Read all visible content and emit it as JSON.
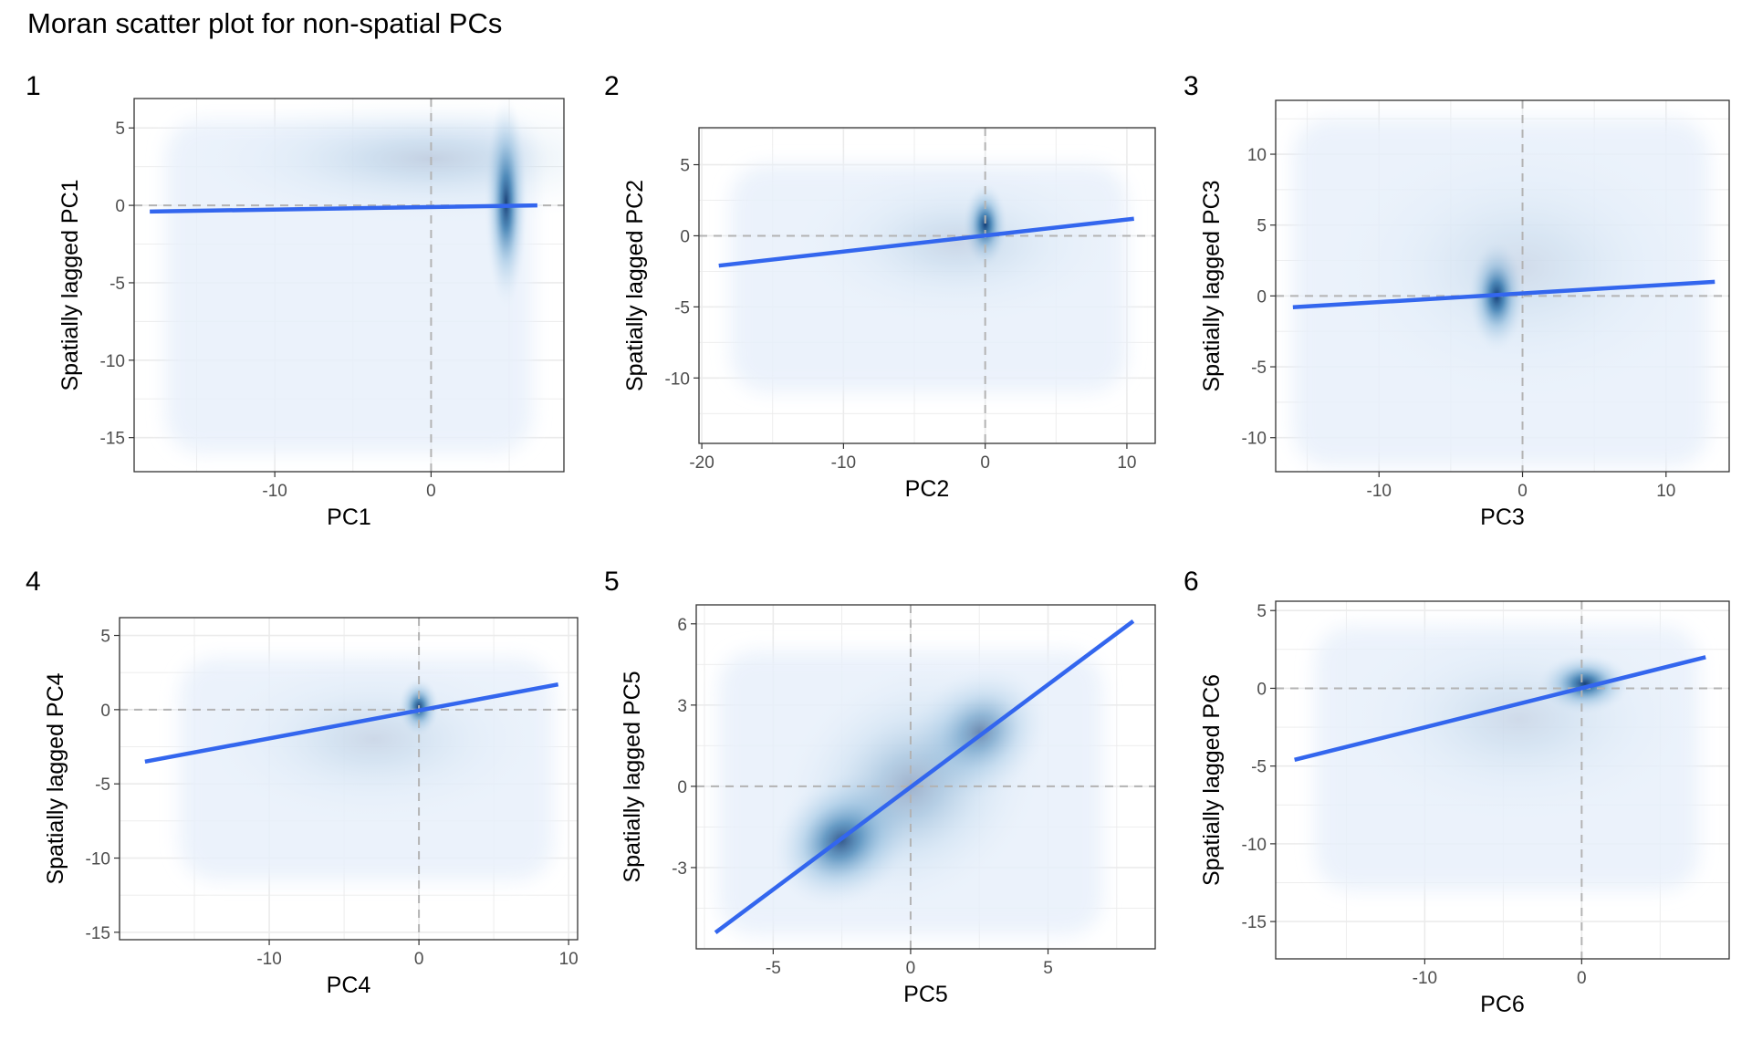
{
  "title": "Moran scatter plot for non-spatial PCs",
  "colors": {
    "fit_line": "#3366ee",
    "density_low": "#e8f0fb",
    "density_mid": "#7fb2d8",
    "density_high": "#08306b",
    "ref_line": "#b3b3b3",
    "grid": "#ebebeb",
    "panel_border": "#333333"
  },
  "chart_data": [
    {
      "type": "scatter",
      "tag": "1",
      "xlabel": "PC1",
      "ylabel": "Spatially lagged PC1",
      "xlim": [
        -19,
        8.5
      ],
      "ylim": [
        -17.2,
        6.9
      ],
      "xticks": [
        -10,
        0
      ],
      "xtick_labels": [
        "-10",
        "0"
      ],
      "yticks": [
        -15,
        -10,
        -5,
        0,
        5
      ],
      "ytick_labels": [
        "-15",
        "-10",
        "-5",
        "0",
        "5"
      ],
      "density_extent": {
        "x": [
          -17,
          6.5
        ],
        "y": [
          -16,
          5.5
        ]
      },
      "density_clusters": [
        {
          "x": 4.8,
          "y": 0.2,
          "sx": 0.7,
          "sy": 3.5,
          "w": 1.0
        },
        {
          "x": 0.0,
          "y": 3.0,
          "sx": 8.0,
          "sy": 2.2,
          "w": 0.18
        }
      ],
      "fit_line": {
        "x": [
          -18,
          6.8
        ],
        "y": [
          -0.4,
          0.0
        ]
      },
      "grid": true
    },
    {
      "type": "scatter",
      "tag": "2",
      "xlabel": "PC2",
      "ylabel": "Spatially lagged PC2",
      "xlim": [
        -20.2,
        12
      ],
      "ylim": [
        -14.6,
        7.6
      ],
      "xticks": [
        -20,
        -10,
        0,
        10
      ],
      "xtick_labels": [
        "-20",
        "-10",
        "0",
        "10"
      ],
      "yticks": [
        -10,
        -5,
        0,
        5
      ],
      "ytick_labels": [
        "-10",
        "-5",
        "0",
        "5"
      ],
      "density_extent": {
        "x": [
          -18,
          10
        ],
        "y": [
          -11,
          5
        ]
      },
      "density_clusters": [
        {
          "x": 0.0,
          "y": 0.8,
          "sx": 0.8,
          "sy": 1.5,
          "w": 1.0
        },
        {
          "x": -2.0,
          "y": -0.5,
          "sx": 6.0,
          "sy": 3.0,
          "w": 0.15
        }
      ],
      "fit_line": {
        "x": [
          -18.8,
          10.5
        ],
        "y": [
          -2.1,
          1.2
        ]
      },
      "grid": true
    },
    {
      "type": "scatter",
      "tag": "3",
      "xlabel": "PC3",
      "ylabel": "Spatially lagged PC3",
      "xlim": [
        -17.2,
        14.4
      ],
      "ylim": [
        -12.4,
        13.8
      ],
      "xticks": [
        -10,
        0,
        10
      ],
      "xtick_labels": [
        "-10",
        "0",
        "10"
      ],
      "yticks": [
        -10,
        -5,
        0,
        5,
        10
      ],
      "ytick_labels": [
        "-10",
        "-5",
        "0",
        "5",
        "10"
      ],
      "density_extent": {
        "x": [
          -16,
          13
        ],
        "y": [
          -12,
          12.5
        ]
      },
      "density_clusters": [
        {
          "x": -1.8,
          "y": 0.0,
          "sx": 1.0,
          "sy": 2.0,
          "w": 1.0
        },
        {
          "x": 0.0,
          "y": 2.0,
          "sx": 7.0,
          "sy": 5.0,
          "w": 0.12
        }
      ],
      "fit_line": {
        "x": [
          -16,
          13.4
        ],
        "y": [
          -0.8,
          1.0
        ]
      },
      "grid": true
    },
    {
      "type": "scatter",
      "tag": "4",
      "xlabel": "PC4",
      "ylabel": "Spatially lagged PC4",
      "xlim": [
        -20,
        10.6
      ],
      "ylim": [
        -15.5,
        6.2
      ],
      "xticks": [
        -10,
        0,
        10
      ],
      "xtick_labels": [
        "-10",
        "0",
        "10"
      ],
      "yticks": [
        -15,
        -10,
        -5,
        0,
        5
      ],
      "ytick_labels": [
        "-15",
        "-10",
        "-5",
        "0",
        "5"
      ],
      "density_extent": {
        "x": [
          -16,
          9
        ],
        "y": [
          -11.5,
          3.5
        ]
      },
      "density_clusters": [
        {
          "x": 0.0,
          "y": 0.2,
          "sx": 0.7,
          "sy": 1.0,
          "w": 1.0
        },
        {
          "x": -3.0,
          "y": -2.0,
          "sx": 6.0,
          "sy": 3.0,
          "w": 0.14
        }
      ],
      "fit_line": {
        "x": [
          -18.3,
          9.3
        ],
        "y": [
          -3.5,
          1.7
        ]
      },
      "grid": true
    },
    {
      "type": "scatter",
      "tag": "5",
      "xlabel": "PC5",
      "ylabel": "Spatially lagged PC5",
      "xlim": [
        -7.8,
        8.9
      ],
      "ylim": [
        -6.0,
        6.7
      ],
      "xticks": [
        -5,
        0,
        5
      ],
      "xtick_labels": [
        "-5",
        "0",
        "5"
      ],
      "yticks": [
        -3,
        0,
        3,
        6
      ],
      "ytick_labels": [
        "-3",
        "0",
        "3",
        "6"
      ],
      "density_extent": {
        "x": [
          -7,
          7
        ],
        "y": [
          -5.5,
          5
        ]
      },
      "density_clusters": [
        {
          "x": -2.5,
          "y": -2.0,
          "sx": 1.4,
          "sy": 1.2,
          "w": 0.9
        },
        {
          "x": 2.5,
          "y": 2.0,
          "sx": 1.4,
          "sy": 1.2,
          "w": 0.6
        },
        {
          "x": 0.0,
          "y": 0.0,
          "sx": 2.6,
          "sy": 2.2,
          "w": 0.35
        }
      ],
      "fit_line": {
        "x": [
          -7.1,
          8.1
        ],
        "y": [
          -5.4,
          6.1
        ]
      },
      "grid": true
    },
    {
      "type": "scatter",
      "tag": "6",
      "xlabel": "PC6",
      "ylabel": "Spatially lagged PC6",
      "xlim": [
        -19.5,
        9.4
      ],
      "ylim": [
        -17.4,
        5.6
      ],
      "xticks": [
        -10,
        0
      ],
      "xtick_labels": [
        "-10",
        "0"
      ],
      "yticks": [
        -15,
        -10,
        -5,
        0,
        5
      ],
      "ytick_labels": [
        "-15",
        "-10",
        "-5",
        "0",
        "5"
      ],
      "density_extent": {
        "x": [
          -17,
          7.5
        ],
        "y": [
          -13,
          4
        ]
      },
      "density_clusters": [
        {
          "x": 0.2,
          "y": 0.3,
          "sx": 1.5,
          "sy": 1.0,
          "w": 1.0
        },
        {
          "x": -4.0,
          "y": -2.0,
          "sx": 6.0,
          "sy": 3.5,
          "w": 0.13
        }
      ],
      "fit_line": {
        "x": [
          -18.3,
          7.9
        ],
        "y": [
          -4.6,
          2.0
        ]
      },
      "grid": true
    }
  ]
}
